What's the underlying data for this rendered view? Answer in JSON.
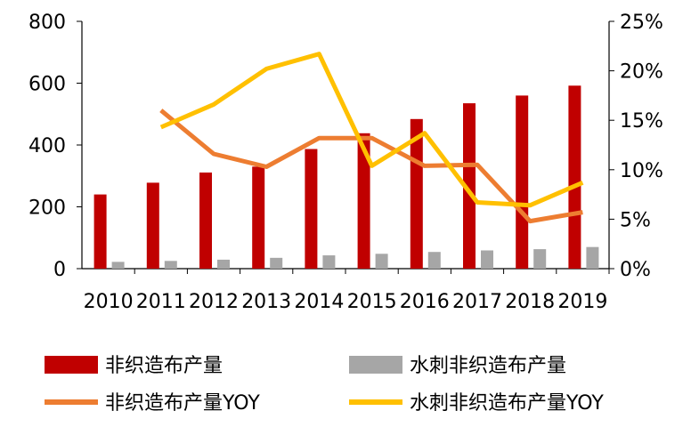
{
  "chart_data": {
    "type": "bar",
    "categories": [
      "2010",
      "2011",
      "2012",
      "2013",
      "2014",
      "2015",
      "2016",
      "2017",
      "2018",
      "2019"
    ],
    "y_left": {
      "ylim": [
        0,
        800
      ],
      "ticks": [
        "0",
        "200",
        "400",
        "600",
        "800"
      ],
      "tick_values": [
        0,
        200,
        400,
        600,
        800
      ]
    },
    "y_right": {
      "ylim": [
        0,
        25
      ],
      "ticks": [
        "0%",
        "5%",
        "10%",
        "15%",
        "20%",
        "25%"
      ],
      "tick_values": [
        0,
        5,
        10,
        15,
        20,
        25
      ]
    },
    "grid": false,
    "legend_position": "bottom",
    "series": [
      {
        "name": "非织造布产量",
        "type": "bar",
        "axis": "left",
        "color": "#C00000",
        "values": [
          240,
          278,
          311,
          330,
          387,
          438,
          484,
          535,
          560,
          592
        ]
      },
      {
        "name": "水刺非织造布产量",
        "type": "bar",
        "axis": "left",
        "color": "#A6A6A6",
        "values": [
          22,
          25,
          29,
          35,
          43,
          48,
          54,
          59,
          63,
          70
        ]
      },
      {
        "name": "非织造布产量YOY",
        "type": "line",
        "axis": "right",
        "color": "#ED7D31",
        "values": [
          null,
          16.0,
          11.6,
          10.3,
          13.2,
          13.2,
          10.4,
          10.5,
          4.8,
          5.7
        ]
      },
      {
        "name": "水刺非织造布产量YOY",
        "type": "line",
        "axis": "right",
        "color": "#FFC000",
        "values": [
          null,
          14.3,
          16.6,
          20.2,
          21.7,
          10.4,
          13.7,
          6.7,
          6.4,
          8.7
        ]
      }
    ]
  }
}
